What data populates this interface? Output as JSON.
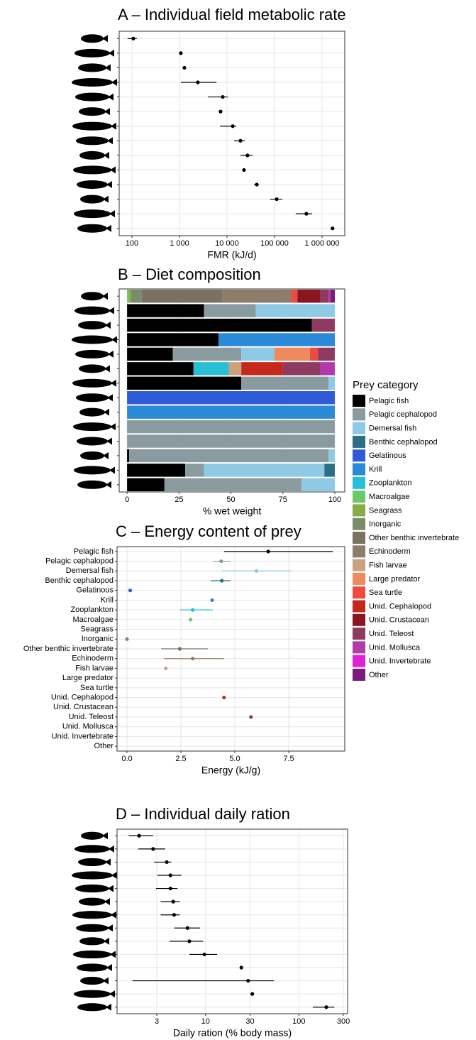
{
  "chart_data": [
    {
      "type": "dot",
      "title": "A – Individual field metabolic rate",
      "xlabel": "FMR (kJ/d)",
      "log_x": true,
      "color": "#000000",
      "values": [
        107,
        1070,
        1270,
        2440,
        8140,
        7330,
        13200,
        19200,
        27000,
        22800,
        42400,
        111000,
        467000,
        1660000
      ],
      "lower": [
        81,
        null,
        null,
        1070,
        3950,
        null,
        7100,
        14100,
        19200,
        null,
        37000,
        81000,
        279000,
        null
      ],
      "upper": [
        127,
        null,
        null,
        6000,
        10400,
        null,
        15600,
        23600,
        34500,
        null,
        47000,
        146000,
        614000,
        null
      ],
      "xlim": [
        54,
        3000000
      ],
      "xticks": [
        100,
        {
          "value": 1000,
          "label": "1 000"
        },
        {
          "value": 10000,
          "label": "10 000"
        },
        {
          "value": 100000,
          "label": "100 000"
        },
        {
          "value": 1000000,
          "label": "1 000 000"
        }
      ],
      "grid": true
    },
    {
      "type": "bar",
      "stacked": true,
      "title": "B – Diet composition",
      "xlabel": "% wet weight",
      "legend_title": "Prey category",
      "xlim": [
        -3.8,
        104.8
      ],
      "xticks": [
        0,
        25,
        50,
        75,
        100
      ],
      "grid": true,
      "series": [
        {
          "name": "Pelagic fish",
          "color": "#000000",
          "values": [
            null,
            37,
            89,
            44,
            22,
            32,
            55,
            null,
            null,
            null,
            null,
            1,
            28,
            18
          ]
        },
        {
          "name": "Pelagic cephalopod",
          "color": "#8a9ba0",
          "values": [
            null,
            25,
            null,
            null,
            33,
            null,
            42,
            null,
            null,
            100,
            100,
            96,
            9,
            66
          ]
        },
        {
          "name": "Demersal fish",
          "color": "#8ecae6",
          "values": [
            null,
            38,
            null,
            null,
            16,
            null,
            3,
            null,
            null,
            null,
            null,
            3,
            58,
            16
          ]
        },
        {
          "name": "Benthic cephalopod",
          "color": "#2a6f86",
          "values": [
            null,
            null,
            null,
            null,
            null,
            null,
            null,
            null,
            null,
            null,
            null,
            null,
            5,
            null
          ]
        },
        {
          "name": "Gelatinous",
          "color": "#2f5bd6",
          "values": [
            null,
            null,
            null,
            null,
            null,
            null,
            null,
            100,
            null,
            null,
            null,
            null,
            null,
            null
          ]
        },
        {
          "name": "Krill",
          "color": "#2b8ad8",
          "values": [
            null,
            null,
            null,
            56,
            null,
            null,
            null,
            null,
            100,
            null,
            null,
            null,
            null,
            null
          ]
        },
        {
          "name": "Zooplankton",
          "color": "#26bfd6",
          "values": [
            null,
            null,
            null,
            null,
            null,
            17,
            null,
            null,
            null,
            null,
            null,
            null,
            null,
            null
          ]
        },
        {
          "name": "Macroalgae",
          "color": "#6cc96a",
          "values": [
            1,
            null,
            null,
            null,
            null,
            null,
            null,
            null,
            null,
            null,
            null,
            null,
            null,
            null
          ]
        },
        {
          "name": "Seagrass",
          "color": "#8aaa4a",
          "values": [
            1,
            null,
            null,
            null,
            null,
            null,
            null,
            null,
            null,
            null,
            null,
            null,
            null,
            null
          ]
        },
        {
          "name": "Inorganic",
          "color": "#7c8c6a",
          "values": [
            5,
            null,
            null,
            null,
            null,
            null,
            null,
            null,
            null,
            null,
            null,
            null,
            null,
            null
          ]
        },
        {
          "name": "Other benthic invertebrate",
          "color": "#7a7160",
          "values": [
            39,
            null,
            null,
            null,
            null,
            null,
            null,
            null,
            null,
            null,
            null,
            null,
            null,
            null
          ]
        },
        {
          "name": "Echinoderm",
          "color": "#8e7d68",
          "values": [
            33,
            null,
            null,
            null,
            null,
            null,
            null,
            null,
            null,
            null,
            null,
            null,
            null,
            null
          ]
        },
        {
          "name": "Fish larvae",
          "color": "#c9a27e",
          "values": [
            null,
            null,
            null,
            null,
            null,
            6,
            null,
            null,
            null,
            null,
            null,
            null,
            null,
            null
          ]
        },
        {
          "name": "Large predator",
          "color": "#f08a5d",
          "values": [
            null,
            null,
            null,
            null,
            17,
            null,
            null,
            null,
            null,
            null,
            null,
            null,
            null,
            null
          ]
        },
        {
          "name": "Sea turtle",
          "color": "#ec4c3f",
          "values": [
            3,
            null,
            null,
            null,
            4,
            null,
            null,
            null,
            null,
            null,
            null,
            null,
            null,
            null
          ]
        },
        {
          "name": "Unid. Cephalopod",
          "color": "#c4291b",
          "values": [
            null,
            null,
            null,
            null,
            null,
            20,
            null,
            null,
            null,
            null,
            null,
            null,
            null,
            null
          ]
        },
        {
          "name": "Unid. Crustacean",
          "color": "#8b1520",
          "values": [
            11,
            null,
            null,
            null,
            null,
            null,
            null,
            null,
            null,
            null,
            null,
            null,
            null,
            null
          ]
        },
        {
          "name": "Unid. Teleost",
          "color": "#8e3a62",
          "values": [
            4,
            null,
            11,
            null,
            8,
            18,
            null,
            null,
            null,
            null,
            null,
            null,
            null,
            null
          ]
        },
        {
          "name": "Unid. Mollusca",
          "color": "#b23aaa",
          "values": [
            1,
            null,
            null,
            null,
            null,
            7,
            null,
            null,
            null,
            null,
            null,
            null,
            null,
            null
          ]
        },
        {
          "name": "Unid. Invertebrate",
          "color": "#e021d6",
          "values": [
            null,
            null,
            null,
            null,
            null,
            null,
            null,
            null,
            null,
            null,
            null,
            null,
            null,
            null
          ]
        },
        {
          "name": "Other",
          "color": "#7a1a80",
          "values": [
            2,
            null,
            null,
            null,
            null,
            null,
            null,
            null,
            null,
            null,
            null,
            null,
            null,
            null
          ]
        }
      ]
    },
    {
      "type": "dot",
      "title": "C – Energy content of prey",
      "xlabel": "Energy (kJ/g)",
      "categories": [
        "Pelagic fish",
        "Pelagic cephalopod",
        "Demersal fish",
        "Benthic cephalopod",
        "Gelatinous",
        "Krill",
        "Zooplankton",
        "Macroalgae",
        "Seagrass",
        "Inorganic",
        "Other benthic invertebrate",
        "Echinoderm",
        "Fish larvae",
        "Large predator",
        "Sea turtle",
        "Unid. Cephalopod",
        "Unid. Crustacean",
        "Unid. Teleost",
        "Unid. Mollusca",
        "Unid. Invertebrate",
        "Other"
      ],
      "colors": [
        "#000000",
        "#8a9ba0",
        "#8ecae6",
        "#2a6f86",
        "#2f5bd6",
        "#2b8ad8",
        "#26bfd6",
        "#6cc96a",
        "#8aaa4a",
        "#7c8c6a",
        "#7a7160",
        "#8e7d68",
        "#c9a27e",
        "#f08a5d",
        "#ec4c3f",
        "#c4291b",
        "#8b1520",
        "#8e3a62",
        "#b23aaa",
        "#e021d6",
        "#7a1a80"
      ],
      "values": [
        6.55,
        4.37,
        6.0,
        4.4,
        0.15,
        3.95,
        3.05,
        2.95,
        null,
        0.0,
        2.45,
        3.05,
        1.8,
        null,
        null,
        4.5,
        null,
        5.75,
        null,
        null,
        null
      ],
      "lower": [
        4.5,
        3.98,
        4.37,
        3.88,
        null,
        null,
        2.47,
        null,
        null,
        null,
        1.58,
        1.71,
        null,
        null,
        null,
        null,
        null,
        null,
        null,
        null,
        null
      ],
      "upper": [
        9.55,
        4.8,
        7.63,
        4.8,
        null,
        null,
        3.98,
        null,
        null,
        null,
        3.75,
        4.5,
        null,
        null,
        null,
        null,
        null,
        null,
        null,
        null,
        null
      ],
      "xlim": [
        -0.46,
        10.1
      ],
      "xticks": [
        {
          "value": 0,
          "label": "0.0"
        },
        {
          "value": 2.5,
          "label": "2.5"
        },
        {
          "value": 5,
          "label": "5.0"
        },
        {
          "value": 7.5,
          "label": "7.5"
        }
      ],
      "grid": true
    },
    {
      "type": "dot",
      "title": "D – Individual daily ration",
      "xlabel": "Daily ration (% body mass)",
      "log_x": true,
      "color": "#000000",
      "values": [
        1.94,
        2.74,
        3.84,
        4.2,
        4.2,
        4.5,
        4.6,
        6.4,
        6.7,
        9.7,
        24.2,
        28.6,
        31.7,
        197
      ],
      "lower": [
        1.5,
        1.9,
        2.8,
        3.05,
        2.95,
        3.3,
        3.3,
        4.6,
        4.1,
        6.7,
        null,
        1.65,
        null,
        141
      ],
      "upper": [
        2.74,
        3.7,
        4.3,
        5.5,
        5.0,
        5.3,
        5.3,
        8.7,
        9.4,
        13.3,
        null,
        54,
        null,
        240
      ],
      "xlim": [
        1.125,
        333
      ],
      "xticks": [
        3,
        10,
        30,
        100,
        300
      ],
      "grid": true
    }
  ]
}
